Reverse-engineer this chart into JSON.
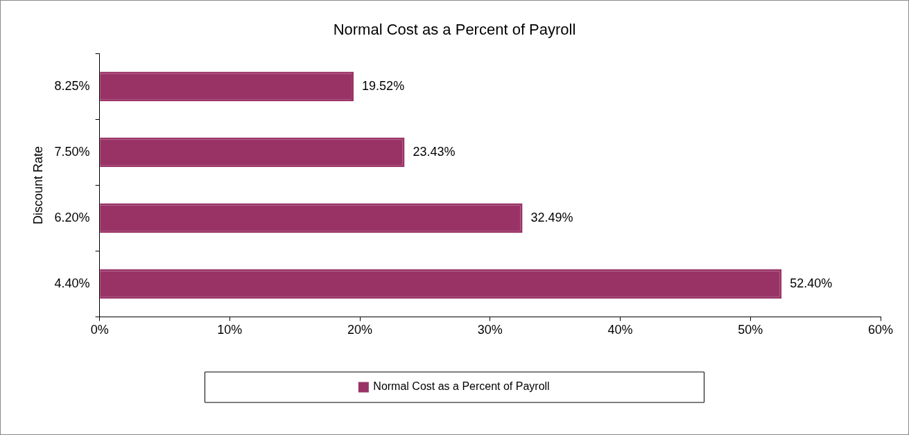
{
  "chart_data": {
    "type": "bar",
    "orientation": "horizontal",
    "title": "Normal Cost as a Percent of Payroll",
    "ylabel": "Discount Rate",
    "categories": [
      "8.25%",
      "7.50%",
      "6.20%",
      "4.40%"
    ],
    "series": [
      {
        "name": "Normal Cost as a Percent of Payroll",
        "color": "#993366",
        "values": [
          19.52,
          23.43,
          32.49,
          52.4
        ],
        "value_labels": [
          "19.52%",
          "23.43%",
          "32.49%",
          "52.40%"
        ]
      }
    ],
    "xlim": [
      0,
      60
    ],
    "xticks": [
      {
        "value": 0,
        "label": "0%"
      },
      {
        "value": 10,
        "label": "10%"
      },
      {
        "value": 20,
        "label": "20%"
      },
      {
        "value": 30,
        "label": "30%"
      },
      {
        "value": 40,
        "label": "40%"
      },
      {
        "value": 50,
        "label": "50%"
      },
      {
        "value": 60,
        "label": "60%"
      }
    ],
    "grid": false,
    "legend": "bottom"
  }
}
